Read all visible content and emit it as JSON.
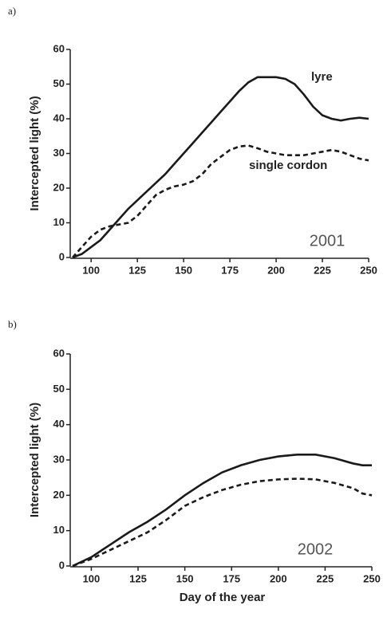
{
  "chart_data": [
    {
      "type": "line",
      "label": "a)",
      "annotation": "2001",
      "ylabel": "Intercepted light (%)",
      "x": [
        90,
        95,
        100,
        105,
        110,
        115,
        120,
        125,
        130,
        135,
        140,
        145,
        150,
        155,
        160,
        165,
        170,
        175,
        180,
        185,
        190,
        195,
        200,
        205,
        210,
        215,
        220,
        225,
        230,
        235,
        240,
        245,
        250
      ],
      "series": [
        {
          "name": "lyre",
          "color": "#1a1a1a",
          "line_style": "solid",
          "values": [
            0,
            1,
            3,
            5,
            8,
            11,
            14,
            16.5,
            19,
            21.5,
            24,
            27,
            30,
            33,
            36,
            39,
            42,
            45,
            48,
            50.5,
            52,
            52,
            52,
            51.5,
            50,
            47,
            43.5,
            41,
            40,
            39.5,
            40,
            40.3,
            40
          ]
        },
        {
          "name": "single cordon",
          "color": "#1a1a1a",
          "line_style": "dashed",
          "values": [
            0,
            3,
            6,
            8,
            9,
            9.5,
            10,
            12,
            15,
            18,
            19.5,
            20.5,
            21,
            22,
            24,
            27,
            29,
            31,
            32,
            32.3,
            31.5,
            30.5,
            30,
            29.5,
            29.5,
            29.5,
            30,
            30.5,
            31,
            30.5,
            29.5,
            28.5,
            28
          ]
        }
      ],
      "xlim": [
        90,
        250
      ],
      "xticks": [
        100,
        125,
        150,
        175,
        200,
        225,
        250
      ],
      "ylim": [
        0,
        60
      ],
      "yticks": [
        0,
        10,
        20,
        30,
        40,
        50,
        60
      ]
    },
    {
      "type": "line",
      "label": "b)",
      "annotation": "2002",
      "ylabel": "Intercepted light (%)",
      "xlabel": "Day of the year",
      "x": [
        90,
        100,
        110,
        120,
        130,
        140,
        150,
        160,
        170,
        180,
        190,
        200,
        210,
        220,
        230,
        240,
        245,
        250
      ],
      "series": [
        {
          "color": "#1a1a1a",
          "line_style": "solid",
          "values": [
            0,
            2.5,
            6,
            9.5,
            12.5,
            16,
            20,
            23.5,
            26.5,
            28.5,
            30,
            31,
            31.5,
            31.5,
            30.5,
            29,
            28.5,
            28.5
          ]
        },
        {
          "color": "#1a1a1a",
          "line_style": "dashed",
          "values": [
            0,
            2,
            4.5,
            7,
            9.5,
            13,
            17,
            19.5,
            21.5,
            23,
            24,
            24.5,
            24.7,
            24.5,
            23.5,
            22,
            20.5,
            20
          ]
        }
      ],
      "xlim": [
        90,
        250
      ],
      "xticks": [
        100,
        125,
        150,
        175,
        200,
        225,
        250
      ],
      "ylim": [
        0,
        60
      ],
      "yticks": [
        0,
        10,
        20,
        30,
        40,
        50,
        60
      ]
    }
  ]
}
